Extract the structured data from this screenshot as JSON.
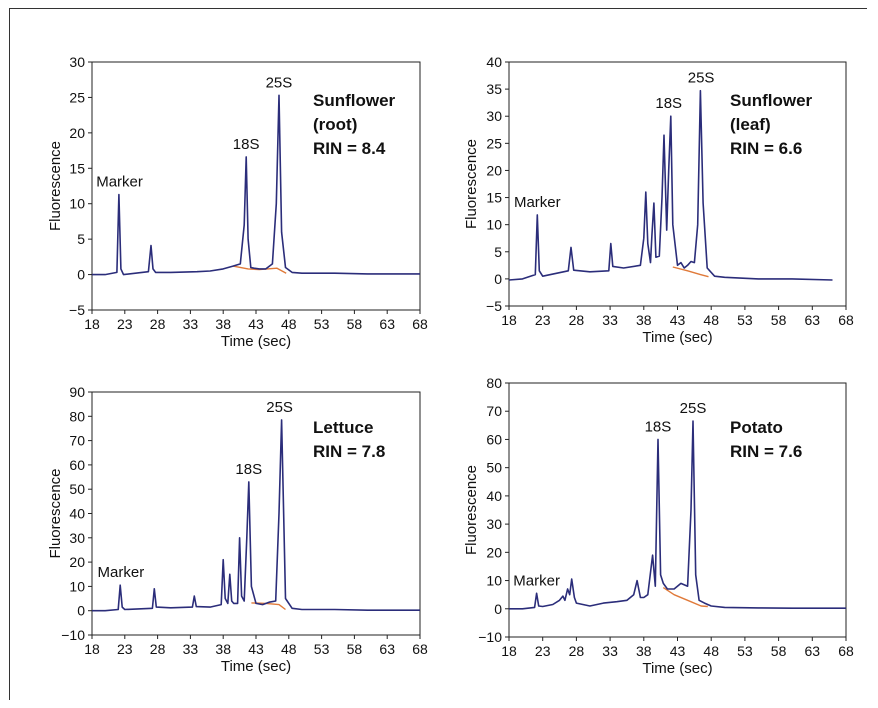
{
  "chart_data": [
    {
      "type": "line",
      "xlabel": "Time (sec)",
      "ylabel": "Fluorescence",
      "xlim": [
        18,
        68
      ],
      "ylim": [
        -5,
        30
      ],
      "xticks": [
        18,
        23,
        28,
        33,
        38,
        43,
        48,
        53,
        58,
        63,
        68
      ],
      "yticks": [
        -5,
        0,
        5,
        10,
        15,
        20,
        25,
        30
      ],
      "ytick_labels": [
        "−5",
        "0",
        "5",
        "10",
        "15",
        "20",
        "25",
        "30"
      ],
      "sample_lines": [
        "Sunflower",
        "(root)",
        "RIN = 8.4"
      ],
      "series": [
        {
          "color": "#2b2d7a",
          "x": [
            18,
            20,
            21.8,
            22.1,
            22.4,
            22.8,
            26.6,
            27,
            27.3,
            27.7,
            30,
            34,
            36,
            38,
            39.5,
            40.6,
            41.2,
            41.5,
            41.8,
            42.2,
            42.7,
            43.5,
            44.5,
            45.5,
            46.1,
            46.5,
            46.9,
            47.5,
            48.5,
            50,
            55,
            60,
            68
          ],
          "y": [
            0,
            0,
            0.3,
            11.3,
            0.8,
            0,
            0.4,
            4.1,
            0.8,
            0.3,
            0.3,
            0.4,
            0.5,
            0.8,
            1.2,
            1.5,
            7,
            16.6,
            5,
            1,
            0.9,
            0.8,
            0.8,
            1.5,
            10,
            25.3,
            6,
            1,
            0.3,
            0.2,
            0.2,
            0.1,
            0.1
          ]
        },
        {
          "color": "#e07a3a",
          "x": [
            39.5,
            41.8,
            43.5,
            46.2,
            47.6
          ],
          "y": [
            1.2,
            0.8,
            0.7,
            0.9,
            0.2
          ]
        }
      ],
      "annotations": [
        {
          "text": "Marker",
          "x": 22.2,
          "y": 11.3
        },
        {
          "text": "18S",
          "x": 41.5,
          "y": 16.6
        },
        {
          "text": "25S",
          "x": 46.5,
          "y": 25.3
        }
      ]
    },
    {
      "type": "line",
      "xlabel": "Time (sec)",
      "ylabel": "Fluorescence",
      "xlim": [
        18,
        68
      ],
      "ylim": [
        -5,
        40
      ],
      "xticks": [
        18,
        23,
        28,
        33,
        38,
        43,
        48,
        53,
        58,
        63,
        68
      ],
      "yticks": [
        -5,
        0,
        5,
        10,
        15,
        20,
        25,
        30,
        35,
        40
      ],
      "ytick_labels": [
        "−5",
        "0",
        "5",
        "10",
        "15",
        "20",
        "25",
        "30",
        "35",
        "40"
      ],
      "sample_lines": [
        "Sunflower",
        "(leaf)",
        "RIN = 6.6"
      ],
      "series": [
        {
          "color": "#2b2d7a",
          "x": [
            18,
            20,
            21.9,
            22.2,
            22.5,
            23,
            26.8,
            27.2,
            27.6,
            30,
            32.8,
            33.1,
            33.4,
            35,
            37.5,
            38,
            38.3,
            38.6,
            39,
            39.2,
            39.5,
            39.8,
            40.3,
            40.7,
            41,
            41.4,
            41.7,
            42,
            42.3,
            43,
            43.5,
            44,
            44.5,
            45,
            45.5,
            46,
            46.4,
            46.8,
            47.4,
            48.5,
            50,
            55,
            60,
            66
          ],
          "y": [
            -0.2,
            0,
            0.8,
            11.8,
            1.5,
            0.5,
            1.5,
            5.8,
            1.6,
            1.3,
            1.5,
            6.5,
            2.3,
            2,
            2.5,
            7.5,
            16,
            6.5,
            3,
            8,
            14,
            4,
            4.2,
            15,
            26.5,
            9,
            20,
            30,
            10,
            2.5,
            3,
            2,
            2.5,
            3.2,
            3,
            10,
            34.7,
            14,
            2,
            0.5,
            0.3,
            0,
            0,
            -0.2
          ]
        },
        {
          "color": "#e07a3a",
          "x": [
            42.3,
            44.5,
            46.4,
            47.6
          ],
          "y": [
            2.2,
            1.5,
            0.8,
            0.4
          ]
        }
      ],
      "annotations": [
        {
          "text": "Marker",
          "x": 22.2,
          "y": 11.8
        },
        {
          "text": "18S",
          "x": 41.7,
          "y": 30
        },
        {
          "text": "25S",
          "x": 46.5,
          "y": 34.7
        }
      ]
    },
    {
      "type": "line",
      "xlabel": "Time (sec)",
      "ylabel": "Fluorescence",
      "xlim": [
        18,
        68
      ],
      "ylim": [
        -10,
        90
      ],
      "xticks": [
        18,
        23,
        28,
        33,
        38,
        43,
        48,
        53,
        58,
        63,
        68
      ],
      "yticks": [
        -10,
        0,
        10,
        20,
        30,
        40,
        50,
        60,
        70,
        80,
        90
      ],
      "ytick_labels": [
        "−10",
        "0",
        "10",
        "20",
        "30",
        "40",
        "50",
        "60",
        "70",
        "80",
        "90"
      ],
      "sample_lines": [
        "Lettuce",
        "RIN = 7.8"
      ],
      "series": [
        {
          "color": "#2b2d7a",
          "x": [
            18,
            20,
            22,
            22.3,
            22.6,
            23,
            27.2,
            27.5,
            27.8,
            30,
            33.3,
            33.6,
            33.9,
            36,
            37.7,
            38,
            38.3,
            38.7,
            39,
            39.3,
            39.6,
            40.2,
            40.5,
            40.8,
            41.2,
            41.6,
            41.9,
            42.3,
            43,
            44,
            45,
            46,
            46.5,
            46.9,
            47.5,
            48.5,
            50,
            55,
            60,
            68
          ],
          "y": [
            0,
            0,
            0.5,
            10.5,
            1.5,
            0.5,
            1,
            9,
            1.5,
            1.2,
            1.5,
            6,
            1.7,
            1.5,
            2.5,
            21,
            5,
            3,
            15,
            4,
            3,
            3,
            30,
            6,
            4,
            30,
            53,
            10,
            3,
            2.5,
            3.5,
            4,
            40,
            78.5,
            5,
            1,
            0.5,
            0.5,
            0.2,
            0.2
          ]
        },
        {
          "color": "#e07a3a",
          "x": [
            42.3,
            44.5,
            46.5,
            47.5
          ],
          "y": [
            3.2,
            3,
            2.5,
            0.5
          ]
        }
      ],
      "annotations": [
        {
          "text": "Marker",
          "x": 22.4,
          "y": 10.5
        },
        {
          "text": "18S",
          "x": 41.9,
          "y": 53
        },
        {
          "text": "25S",
          "x": 46.6,
          "y": 78.5
        }
      ]
    },
    {
      "type": "line",
      "xlabel": "Time (sec)",
      "ylabel": "Fluorescence",
      "xlim": [
        18,
        68
      ],
      "ylim": [
        -10,
        80
      ],
      "xticks": [
        18,
        23,
        28,
        33,
        38,
        43,
        48,
        53,
        58,
        63,
        68
      ],
      "yticks": [
        -10,
        0,
        10,
        20,
        30,
        40,
        50,
        60,
        70,
        80
      ],
      "ytick_labels": [
        "−10",
        "0",
        "10",
        "20",
        "30",
        "40",
        "50",
        "60",
        "70",
        "80"
      ],
      "sample_lines": [
        "Potato",
        "RIN = 7.6"
      ],
      "series": [
        {
          "color": "#2b2d7a",
          "x": [
            18,
            20,
            21.8,
            22.1,
            22.4,
            23,
            24.5,
            25.5,
            26,
            26.3,
            26.7,
            27,
            27.3,
            27.7,
            28,
            30,
            32,
            34,
            35.5,
            36.5,
            37,
            37.5,
            38,
            38.6,
            39.3,
            39.7,
            40.1,
            40.5,
            40.9,
            41.5,
            42.5,
            43.5,
            44.5,
            45,
            45.3,
            45.7,
            46.2,
            47,
            48,
            50,
            55,
            60,
            68
          ],
          "y": [
            0,
            0,
            0.5,
            5.5,
            1,
            0.8,
            1.5,
            3,
            4.5,
            3,
            7,
            5,
            10.5,
            4,
            2,
            1,
            2,
            2.5,
            3,
            5,
            10,
            4,
            4,
            5,
            19,
            8,
            60,
            12,
            9,
            7,
            7,
            9,
            8,
            35,
            66.5,
            12,
            3,
            2,
            1,
            0.5,
            0.3,
            0.2,
            0.2
          ]
        },
        {
          "color": "#e07a3a",
          "x": [
            40.9,
            42.5,
            44.5,
            46.5,
            47.5
          ],
          "y": [
            7.5,
            5,
            3,
            1,
            0.8
          ]
        }
      ],
      "annotations": [
        {
          "text": "Marker",
          "x": 22.1,
          "y": 5.5
        },
        {
          "text": "18S",
          "x": 40.1,
          "y": 60
        },
        {
          "text": "25S",
          "x": 45.3,
          "y": 66.5
        }
      ]
    }
  ]
}
